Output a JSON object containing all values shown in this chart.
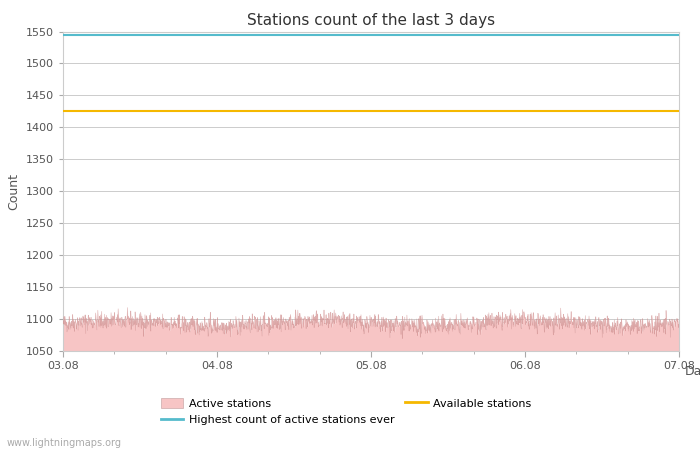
{
  "title": "Stations count of the last 3 days",
  "xlabel": "Day",
  "ylabel": "Count",
  "ylim": [
    1050,
    1550
  ],
  "yticks": [
    1050,
    1100,
    1150,
    1200,
    1250,
    1300,
    1350,
    1400,
    1450,
    1500,
    1550
  ],
  "x_start": 0,
  "x_end": 72,
  "xtick_labels": [
    "03.08",
    "04.08",
    "05.08",
    "06.08",
    "07.08"
  ],
  "xtick_positions": [
    0,
    18,
    36,
    54,
    72
  ],
  "active_stations_mean": 1093,
  "active_stations_noise": 7,
  "highest_count_line": 1545,
  "available_stations_line": 1425,
  "fill_color": "#f7c5c5",
  "line_color": "#d09090",
  "highest_line_color": "#55bbcc",
  "available_line_color": "#f5b800",
  "background_color": "#ffffff",
  "grid_color": "#cccccc",
  "title_fontsize": 11,
  "label_fontsize": 9,
  "tick_fontsize": 8,
  "watermark": "www.lightningmaps.org"
}
